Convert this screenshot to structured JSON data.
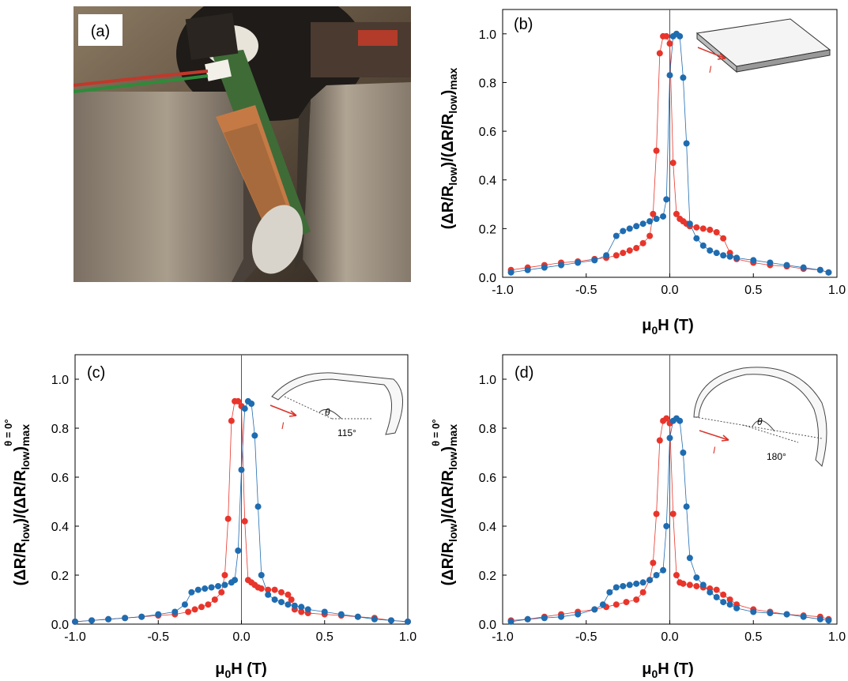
{
  "figure": {
    "photo_label": "(a)",
    "colors": {
      "red": "#e8352b",
      "blue": "#1f6cb0"
    }
  },
  "chart_data": [
    {
      "type": "scatter",
      "panel_label": "(b)",
      "xlabel": "μ0H (T)",
      "ylabel": "(ΔR/Rlow)/(ΔR/Rlow)max",
      "xlim": [
        -1.0,
        1.0
      ],
      "ylim": [
        0.0,
        1.1
      ],
      "x_ticks": [
        "-1.0",
        "-0.5",
        "0.0",
        "0.5",
        "1.0"
      ],
      "y_ticks": [
        "0.0",
        "0.2",
        "0.4",
        "0.6",
        "0.8",
        "1.0"
      ],
      "inset_labels": {
        "current": "I"
      },
      "series": [
        {
          "color": "red",
          "x": [
            -0.95,
            -0.85,
            -0.75,
            -0.65,
            -0.55,
            -0.45,
            -0.38,
            -0.32,
            -0.28,
            -0.24,
            -0.2,
            -0.16,
            -0.12,
            -0.1,
            -0.08,
            -0.06,
            -0.04,
            -0.02,
            0.0,
            0.02,
            0.04,
            0.06,
            0.08,
            0.1,
            0.12,
            0.16,
            0.2,
            0.24,
            0.28,
            0.32,
            0.36,
            0.4,
            0.5,
            0.6,
            0.7,
            0.8,
            0.9,
            0.95
          ],
          "y": [
            0.03,
            0.04,
            0.05,
            0.06,
            0.065,
            0.075,
            0.08,
            0.09,
            0.1,
            0.11,
            0.12,
            0.14,
            0.17,
            0.26,
            0.52,
            0.92,
            0.99,
            0.99,
            0.96,
            0.47,
            0.26,
            0.24,
            0.23,
            0.22,
            0.21,
            0.205,
            0.2,
            0.195,
            0.185,
            0.16,
            0.1,
            0.075,
            0.06,
            0.05,
            0.045,
            0.035,
            0.03,
            0.02
          ]
        },
        {
          "color": "blue",
          "x": [
            -0.95,
            -0.85,
            -0.75,
            -0.65,
            -0.55,
            -0.45,
            -0.38,
            -0.32,
            -0.28,
            -0.24,
            -0.2,
            -0.16,
            -0.12,
            -0.08,
            -0.04,
            -0.02,
            0.0,
            0.02,
            0.04,
            0.06,
            0.08,
            0.1,
            0.12,
            0.16,
            0.2,
            0.24,
            0.28,
            0.32,
            0.36,
            0.4,
            0.5,
            0.6,
            0.7,
            0.8,
            0.9,
            0.95
          ],
          "y": [
            0.02,
            0.03,
            0.04,
            0.05,
            0.06,
            0.07,
            0.09,
            0.17,
            0.19,
            0.2,
            0.21,
            0.22,
            0.23,
            0.24,
            0.25,
            0.32,
            0.83,
            0.99,
            1.0,
            0.99,
            0.82,
            0.55,
            0.22,
            0.16,
            0.13,
            0.11,
            0.1,
            0.09,
            0.085,
            0.08,
            0.07,
            0.06,
            0.05,
            0.04,
            0.03,
            0.02
          ]
        }
      ]
    },
    {
      "type": "scatter",
      "panel_label": "(c)",
      "xlabel": "μ0H (T)",
      "ylabel": "(ΔR/Rlow)/(ΔR/Rlow)max θ = 0°",
      "xlim": [
        -1.0,
        1.0
      ],
      "ylim": [
        0.0,
        1.1
      ],
      "x_ticks": [
        "-1.0",
        "-0.5",
        "0.0",
        "0.5",
        "1.0"
      ],
      "y_ticks": [
        "0.0",
        "0.2",
        "0.4",
        "0.6",
        "0.8",
        "1.0"
      ],
      "inset_labels": {
        "angle_symbol": "θ",
        "angle": "115°",
        "current": "I"
      },
      "series": [
        {
          "color": "red",
          "x": [
            -1.0,
            -0.9,
            -0.8,
            -0.7,
            -0.6,
            -0.5,
            -0.4,
            -0.32,
            -0.28,
            -0.24,
            -0.2,
            -0.16,
            -0.12,
            -0.1,
            -0.08,
            -0.06,
            -0.04,
            -0.02,
            0.0,
            0.02,
            0.04,
            0.06,
            0.08,
            0.1,
            0.12,
            0.16,
            0.2,
            0.24,
            0.28,
            0.3,
            0.32,
            0.36,
            0.4,
            0.5,
            0.6,
            0.7,
            0.8,
            0.9,
            1.0
          ],
          "y": [
            0.01,
            0.015,
            0.02,
            0.025,
            0.03,
            0.035,
            0.04,
            0.05,
            0.06,
            0.07,
            0.08,
            0.1,
            0.13,
            0.2,
            0.43,
            0.83,
            0.91,
            0.91,
            0.89,
            0.42,
            0.18,
            0.17,
            0.16,
            0.15,
            0.145,
            0.14,
            0.14,
            0.13,
            0.12,
            0.1,
            0.06,
            0.05,
            0.045,
            0.04,
            0.035,
            0.03,
            0.025,
            0.015,
            0.01
          ]
        },
        {
          "color": "blue",
          "x": [
            -1.0,
            -0.9,
            -0.8,
            -0.7,
            -0.6,
            -0.5,
            -0.4,
            -0.34,
            -0.3,
            -0.26,
            -0.22,
            -0.18,
            -0.14,
            -0.1,
            -0.06,
            -0.04,
            -0.02,
            0.0,
            0.02,
            0.04,
            0.06,
            0.08,
            0.1,
            0.12,
            0.16,
            0.2,
            0.24,
            0.28,
            0.32,
            0.36,
            0.4,
            0.5,
            0.6,
            0.7,
            0.8,
            0.9,
            1.0
          ],
          "y": [
            0.01,
            0.015,
            0.02,
            0.025,
            0.03,
            0.04,
            0.05,
            0.08,
            0.13,
            0.14,
            0.145,
            0.15,
            0.155,
            0.16,
            0.17,
            0.18,
            0.3,
            0.63,
            0.88,
            0.91,
            0.9,
            0.77,
            0.48,
            0.2,
            0.12,
            0.1,
            0.09,
            0.08,
            0.075,
            0.07,
            0.06,
            0.05,
            0.04,
            0.03,
            0.02,
            0.015,
            0.01
          ]
        }
      ]
    },
    {
      "type": "scatter",
      "panel_label": "(d)",
      "xlabel": "μ0H (T)",
      "ylabel": "(ΔR/Rlow)/(ΔR/Rlow)max θ = 0°",
      "xlim": [
        -1.0,
        1.0
      ],
      "ylim": [
        0.0,
        1.1
      ],
      "x_ticks": [
        "-1.0",
        "-0.5",
        "0.0",
        "0.5",
        "1.0"
      ],
      "y_ticks": [
        "0.0",
        "0.2",
        "0.4",
        "0.6",
        "0.8",
        "1.0"
      ],
      "inset_labels": {
        "angle_symbol": "θ",
        "angle": "180°",
        "current": "I"
      },
      "series": [
        {
          "color": "red",
          "x": [
            -0.95,
            -0.85,
            -0.75,
            -0.65,
            -0.55,
            -0.45,
            -0.38,
            -0.32,
            -0.26,
            -0.2,
            -0.16,
            -0.12,
            -0.1,
            -0.08,
            -0.06,
            -0.04,
            -0.02,
            0.0,
            0.02,
            0.04,
            0.06,
            0.08,
            0.12,
            0.16,
            0.2,
            0.24,
            0.28,
            0.32,
            0.36,
            0.4,
            0.5,
            0.6,
            0.7,
            0.8,
            0.9,
            0.95
          ],
          "y": [
            0.015,
            0.02,
            0.03,
            0.04,
            0.05,
            0.06,
            0.07,
            0.08,
            0.09,
            0.1,
            0.13,
            0.18,
            0.25,
            0.45,
            0.75,
            0.83,
            0.84,
            0.82,
            0.45,
            0.2,
            0.17,
            0.165,
            0.16,
            0.155,
            0.15,
            0.145,
            0.14,
            0.12,
            0.1,
            0.08,
            0.06,
            0.05,
            0.04,
            0.035,
            0.03,
            0.02
          ]
        },
        {
          "color": "blue",
          "x": [
            -0.95,
            -0.85,
            -0.75,
            -0.65,
            -0.55,
            -0.45,
            -0.4,
            -0.36,
            -0.32,
            -0.28,
            -0.24,
            -0.2,
            -0.16,
            -0.12,
            -0.08,
            -0.04,
            -0.02,
            0.0,
            0.02,
            0.04,
            0.06,
            0.08,
            0.1,
            0.12,
            0.16,
            0.2,
            0.24,
            0.28,
            0.32,
            0.36,
            0.4,
            0.5,
            0.6,
            0.7,
            0.8,
            0.9,
            0.95
          ],
          "y": [
            0.01,
            0.02,
            0.025,
            0.03,
            0.04,
            0.06,
            0.08,
            0.13,
            0.15,
            0.155,
            0.16,
            0.165,
            0.17,
            0.18,
            0.2,
            0.22,
            0.4,
            0.76,
            0.83,
            0.84,
            0.83,
            0.7,
            0.48,
            0.27,
            0.19,
            0.16,
            0.13,
            0.11,
            0.09,
            0.08,
            0.065,
            0.05,
            0.045,
            0.04,
            0.03,
            0.02,
            0.015
          ]
        }
      ]
    }
  ]
}
